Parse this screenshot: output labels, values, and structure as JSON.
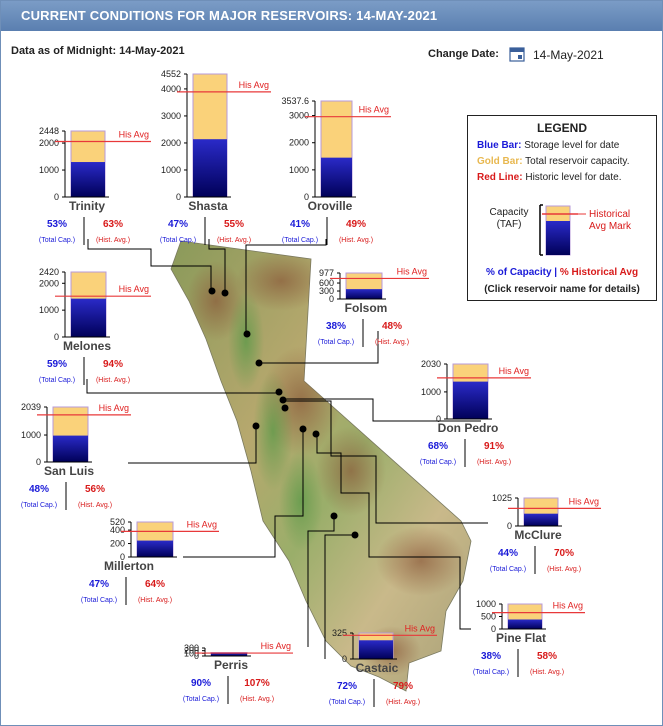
{
  "header": {
    "title": "CURRENT CONDITIONS FOR MAJOR RESERVOIRS: 14-MAY-2021",
    "data_as_of": "Data as of Midnight: 14-May-2021",
    "change_date_label": "Change Date:",
    "change_date_value": "14-May-2021",
    "calendar_icon": "calendar-icon"
  },
  "legend": {
    "title": "LEGEND",
    "blue_term": "Blue Bar:",
    "blue_desc": "Storage level for date",
    "gold_term": "Gold Bar:",
    "gold_desc": "Total reservoir capacity.",
    "red_term": "Red Line:",
    "red_desc": "Historic level for date.",
    "capacity_line1": "Capacity",
    "capacity_line2": "(TAF)",
    "hist_line1": "Historical",
    "hist_line2": "Avg Mark",
    "pct_capacity": "% of Capacity",
    "separator": "|",
    "pct_hist": "% Historical Avg",
    "click_note": "(Click reservoir name for details)"
  },
  "labels": {
    "his_avg": "His Avg",
    "total_cap": "(Total Cap.)",
    "hist_avg": "(Hist. Avg.)"
  },
  "colors": {
    "storage_top": "#2a2ac8",
    "storage_bottom": "#000058",
    "capacity": "#fad27a",
    "historical": "#e8383a",
    "pct_capacity": "#1a1ad8",
    "pct_hist": "#d81a1a"
  },
  "chart_data": {
    "type": "bar",
    "units": "TAF",
    "reservoirs": [
      {
        "name": "Trinity",
        "capacity": 2448,
        "ticks": [
          "2448",
          "2000",
          "1000",
          "0"
        ],
        "tick_values": [
          2448,
          2000,
          1000,
          0
        ],
        "storage": 1297,
        "hist": 2059,
        "pct_capacity": "53%",
        "pct_hist": "63%"
      },
      {
        "name": "Shasta",
        "capacity": 4552,
        "ticks": [
          "4552",
          "4000",
          "3000",
          "2000",
          "1000",
          "0"
        ],
        "tick_values": [
          4552,
          4000,
          3000,
          2000,
          1000,
          0
        ],
        "storage": 2139,
        "hist": 3890,
        "pct_capacity": "47%",
        "pct_hist": "55%"
      },
      {
        "name": "Oroville",
        "capacity": 3537.6,
        "ticks": [
          "3537.6",
          "3000",
          "2000",
          "1000",
          "0"
        ],
        "tick_values": [
          3537.6,
          3000,
          2000,
          1000,
          0
        ],
        "storage": 1450,
        "hist": 2960,
        "pct_capacity": "41%",
        "pct_hist": "49%"
      },
      {
        "name": "Folsom",
        "capacity": 977,
        "ticks": [
          "977",
          "600",
          "300",
          "0"
        ],
        "tick_values": [
          977,
          600,
          300,
          0
        ],
        "storage": 371,
        "hist": 773,
        "pct_capacity": "38%",
        "pct_hist": "48%"
      },
      {
        "name": "Melones",
        "capacity": 2420,
        "ticks": [
          "2420",
          "2000",
          "1000",
          "0"
        ],
        "tick_values": [
          2420,
          2000,
          1000,
          0
        ],
        "storage": 1428,
        "hist": 1519,
        "pct_capacity": "59%",
        "pct_hist": "94%"
      },
      {
        "name": "Don Pedro",
        "capacity": 2030,
        "ticks": [
          "2030",
          "1000",
          "0"
        ],
        "tick_values": [
          2030,
          1000,
          0
        ],
        "storage": 1380,
        "hist": 1517,
        "pct_capacity": "68%",
        "pct_hist": "91%"
      },
      {
        "name": "San Luis",
        "capacity": 2039,
        "ticks": [
          "2039",
          "1000",
          "0"
        ],
        "tick_values": [
          2039,
          1000,
          0
        ],
        "storage": 979,
        "hist": 1748,
        "pct_capacity": "48%",
        "pct_hist": "56%"
      },
      {
        "name": "McClure",
        "capacity": 1025,
        "ticks": [
          "1025",
          "0"
        ],
        "tick_values": [
          1025,
          0
        ],
        "storage": 451,
        "hist": 644,
        "pct_capacity": "44%",
        "pct_hist": "70%"
      },
      {
        "name": "Millerton",
        "capacity": 520,
        "ticks": [
          "520",
          "400",
          "200",
          "0"
        ],
        "tick_values": [
          520,
          400,
          200,
          0
        ],
        "storage": 244,
        "hist": 381,
        "pct_capacity": "47%",
        "pct_hist": "64%"
      },
      {
        "name": "Pine Flat",
        "capacity": 1000,
        "ticks": [
          "1000",
          "500",
          "0"
        ],
        "tick_values": [
          1000,
          500,
          0
        ],
        "storage": 380,
        "hist": 655,
        "pct_capacity": "38%",
        "pct_hist": "58%"
      },
      {
        "name": "Perris",
        "capacity": 131,
        "ticks": [
          "300",
          "200",
          "100",
          "0"
        ],
        "tick_values": [
          300,
          200,
          100,
          0
        ],
        "storage": 118,
        "hist": 110,
        "pct_capacity": "90%",
        "pct_hist": "107%"
      },
      {
        "name": "Castaic",
        "capacity": 325,
        "ticks": [
          "325",
          "0"
        ],
        "tick_values": [
          325,
          0
        ],
        "storage": 234,
        "hist": 296,
        "pct_capacity": "72%",
        "pct_hist": "79%"
      }
    ]
  }
}
